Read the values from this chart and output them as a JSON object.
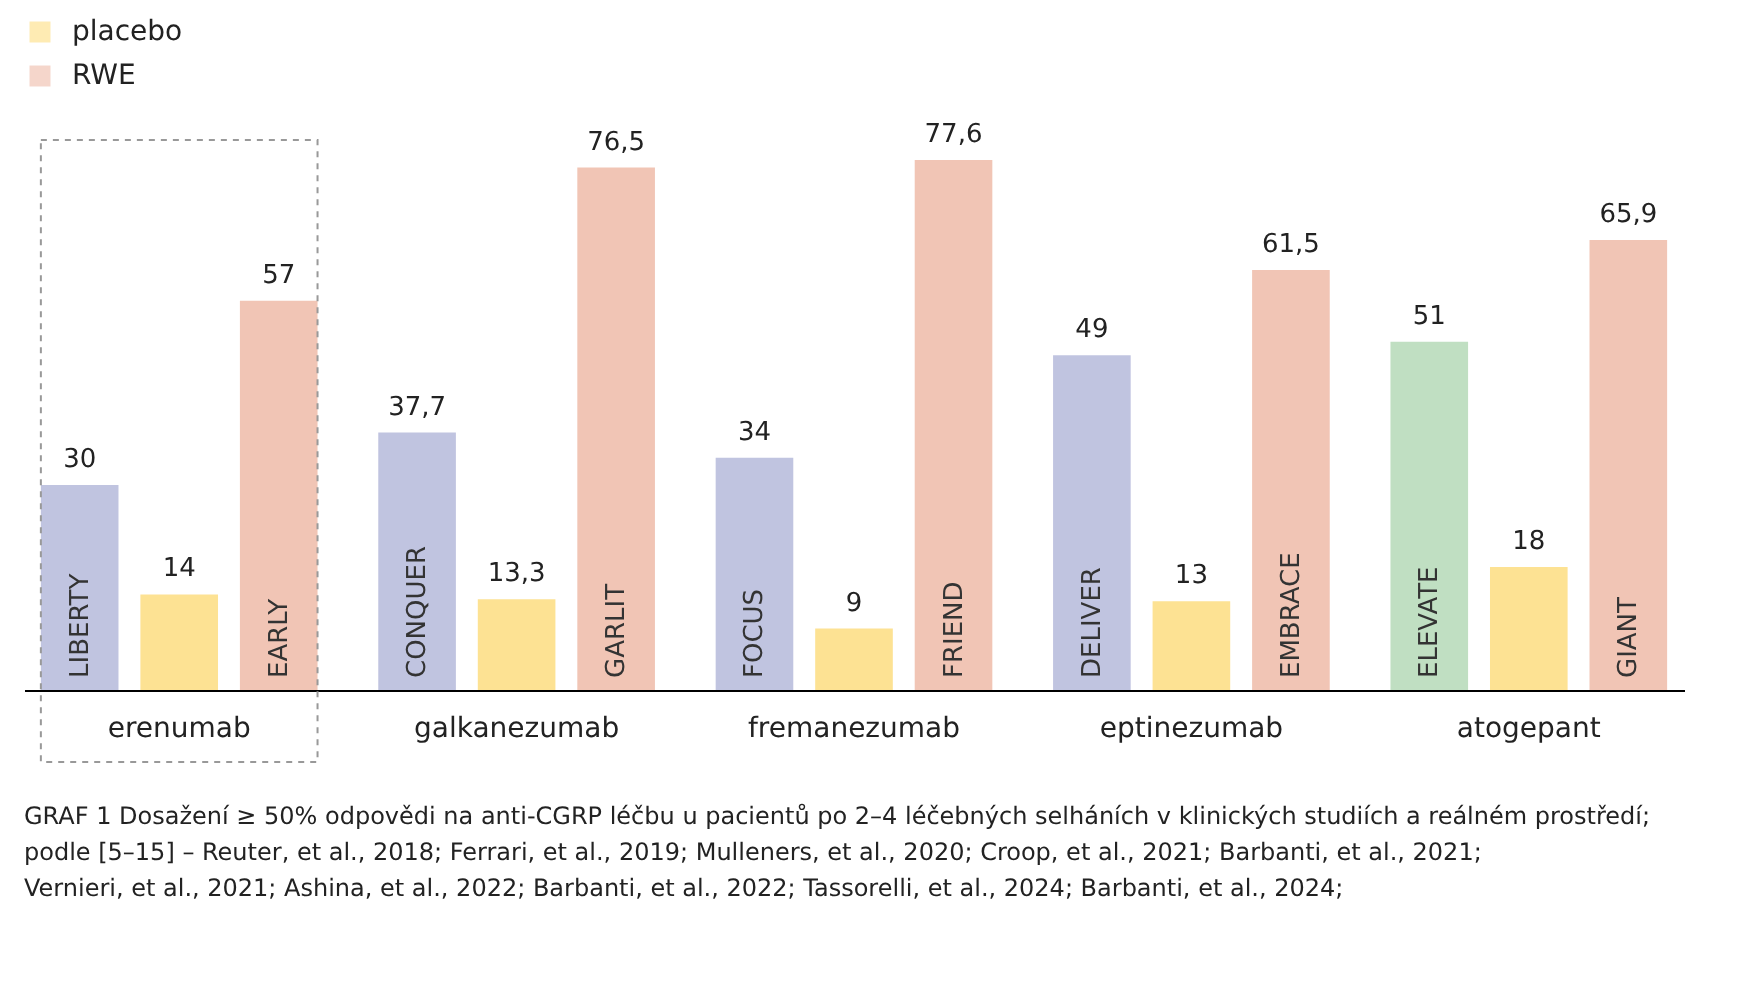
{
  "chart_data": {
    "type": "bar",
    "categories": [
      "erenumab",
      "galkanezumab",
      "fremanezumab",
      "eptinezumab",
      "atogepant"
    ],
    "series": [
      {
        "colors": [
          "#c0c4e0",
          "#c0c4e0",
          "#c0c4e0",
          "#c0c4e0",
          "#c0dfc2"
        ],
        "values": [
          30,
          37.7,
          34,
          49,
          51
        ],
        "value_labels": [
          "30",
          "37,7",
          "34",
          "49",
          "51"
        ]
      },
      {
        "name": "placebo",
        "color": "#fde293",
        "values": [
          14,
          13.3,
          9,
          13,
          18
        ],
        "value_labels": [
          "14",
          "13,3",
          "9",
          "13",
          "18"
        ]
      },
      {
        "name": "RWE",
        "color": "#f1c5b5",
        "values": [
          57,
          76.5,
          77.6,
          61.5,
          65.9
        ],
        "value_labels": [
          "57",
          "76,5",
          "77,6",
          "61,5",
          "65,9"
        ]
      }
    ],
    "annotations": [
      "LIBERTY",
      "EARLY",
      "CONQUER",
      "GARLIT",
      "FOCUS",
      "FRIEND",
      "DELIVER",
      "EMBRACE",
      "ELEVATE",
      "GIANT",
      "GRAF 1 Dosažení ≥ 50% odpovědi na anti-CGRP léčbu u pacientů po 2–4 léčebných selháních v klinických studiích a reálném prostředí; podle [5–15] – Reuter, et al., 2018; Ferrari, et al., 2019; Mulleners, et al., 2020; Croop, et al., 2021; Barbanti, et al., 2021; Vernieri, et al., 2021; Ashina, et al., 2022; Barbanti, et al., 2022; Tassorelli, et al., 2024; Barbanti, et al., 2024;"
    ],
    "data_labels": true,
    "legend": "top left",
    "grid": false
  }
}
